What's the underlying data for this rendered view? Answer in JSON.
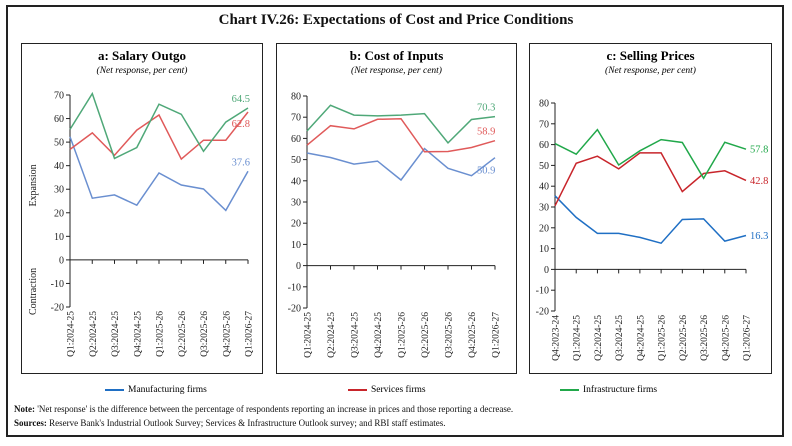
{
  "title": "Chart IV.26: Expectations of Cost and Price Conditions",
  "legend": [
    {
      "name": "Manufacturing firms",
      "color": "#1f6fc4"
    },
    {
      "name": "Services firms",
      "color": "#c8252b"
    },
    {
      "name": "Infrastructure firms",
      "color": "#21a84a"
    }
  ],
  "note_label": "Note:",
  "note_text": "'Net response' is the difference between the percentage of respondents reporting an increase in prices and those reporting a decrease.",
  "sources_label": "Sources:",
  "sources_text": "Reserve Bank's Industrial Outlook Survey; Services & Infrastructure Outlook survey; and RBI staff estimates.",
  "chart_data": [
    {
      "type": "line",
      "title": "a: Salary Outgo",
      "subtitle": "(Net response, per cent)",
      "ylabel_upper": "Expansion",
      "ylabel_lower": "Contraction",
      "ylim": [
        -20,
        70
      ],
      "yticks": [
        -20,
        -10,
        0,
        10,
        20,
        30,
        40,
        50,
        60,
        70
      ],
      "grid": false,
      "categories": [
        "Q1:2024-25",
        "Q2:2024-25",
        "Q3:2024-25",
        "Q4:2024-25",
        "Q1:2025-26",
        "Q2:2025-26",
        "Q3:2025-26",
        "Q4:2025-26",
        "Q1:2026-27"
      ],
      "colors": [
        "#6a8fd0",
        "#e05a5a",
        "#4fa878"
      ],
      "series": [
        {
          "name": "Manufacturing firms",
          "values": [
            52.3,
            26.2,
            27.6,
            23.2,
            36.9,
            31.8,
            30.1,
            21.0,
            37.6
          ],
          "end_label": "37.6"
        },
        {
          "name": "Services firms",
          "values": [
            46.9,
            53.9,
            44.4,
            55.1,
            61.5,
            42.8,
            50.8,
            50.8,
            62.8
          ],
          "end_label": "62.8"
        },
        {
          "name": "Infrastructure firms",
          "values": [
            55.4,
            70.6,
            43.1,
            47.7,
            66.1,
            61.8,
            46.1,
            58.5,
            64.5
          ],
          "end_label": "64.5"
        }
      ]
    },
    {
      "type": "line",
      "title": "b: Cost of Inputs",
      "subtitle": "(Net response, per cent)",
      "ylim": [
        -20,
        80
      ],
      "yticks": [
        -20,
        -10,
        0,
        10,
        20,
        30,
        40,
        50,
        60,
        70,
        80
      ],
      "grid": false,
      "categories": [
        "Q1:2024-25",
        "Q2:2024-25",
        "Q3:2024-25",
        "Q4:2024-25",
        "Q1:2025-26",
        "Q2:2025-26",
        "Q3:2025-26",
        "Q4:2025-26",
        "Q1:2026-27"
      ],
      "colors": [
        "#6a8fd0",
        "#e05a5a",
        "#4fa878"
      ],
      "series": [
        {
          "name": "Manufacturing firms",
          "values": [
            53.1,
            51.0,
            47.9,
            49.3,
            40.4,
            55.2,
            45.9,
            42.4,
            50.9
          ],
          "end_label": "50.9"
        },
        {
          "name": "Services firms",
          "values": [
            56.8,
            66.0,
            64.5,
            69.0,
            69.3,
            53.7,
            53.8,
            55.7,
            58.9
          ],
          "end_label": "58.9"
        },
        {
          "name": "Infrastructure firms",
          "values": [
            63.5,
            75.6,
            71.0,
            70.6,
            71.0,
            71.7,
            57.9,
            68.9,
            70.3
          ],
          "end_label": "70.3"
        }
      ]
    },
    {
      "type": "line",
      "title": "c: Selling Prices",
      "subtitle": "(Net response, per cent)",
      "ylim": [
        -20,
        80
      ],
      "yticks": [
        -20,
        -10,
        0,
        10,
        20,
        30,
        40,
        50,
        60,
        70,
        80
      ],
      "grid": false,
      "categories": [
        "Q4:2023-24",
        "Q1:2024-25",
        "Q2:2024-25",
        "Q3:2024-25",
        "Q4:2024-25",
        "Q1:2025-26",
        "Q2:2025-26",
        "Q3:2025-26",
        "Q4:2025-26",
        "Q1:2026-27"
      ],
      "colors": [
        "#1f6fc4",
        "#c8252b",
        "#21a84a"
      ],
      "series": [
        {
          "name": "Manufacturing firms",
          "values": [
            35.4,
            25.0,
            17.3,
            17.3,
            15.4,
            12.6,
            24.0,
            24.3,
            13.6,
            16.3
          ],
          "end_label": "16.3"
        },
        {
          "name": "Services firms",
          "values": [
            30.6,
            51.0,
            54.4,
            48.3,
            56.0,
            56.0,
            37.4,
            46.1,
            47.4,
            42.8
          ],
          "end_label": "42.8"
        },
        {
          "name": "Infrastructure firms",
          "values": [
            60.5,
            55.4,
            67.2,
            50.2,
            57.0,
            62.4,
            61.0,
            43.8,
            61.1,
            57.8
          ],
          "end_label": "57.8"
        }
      ]
    }
  ]
}
